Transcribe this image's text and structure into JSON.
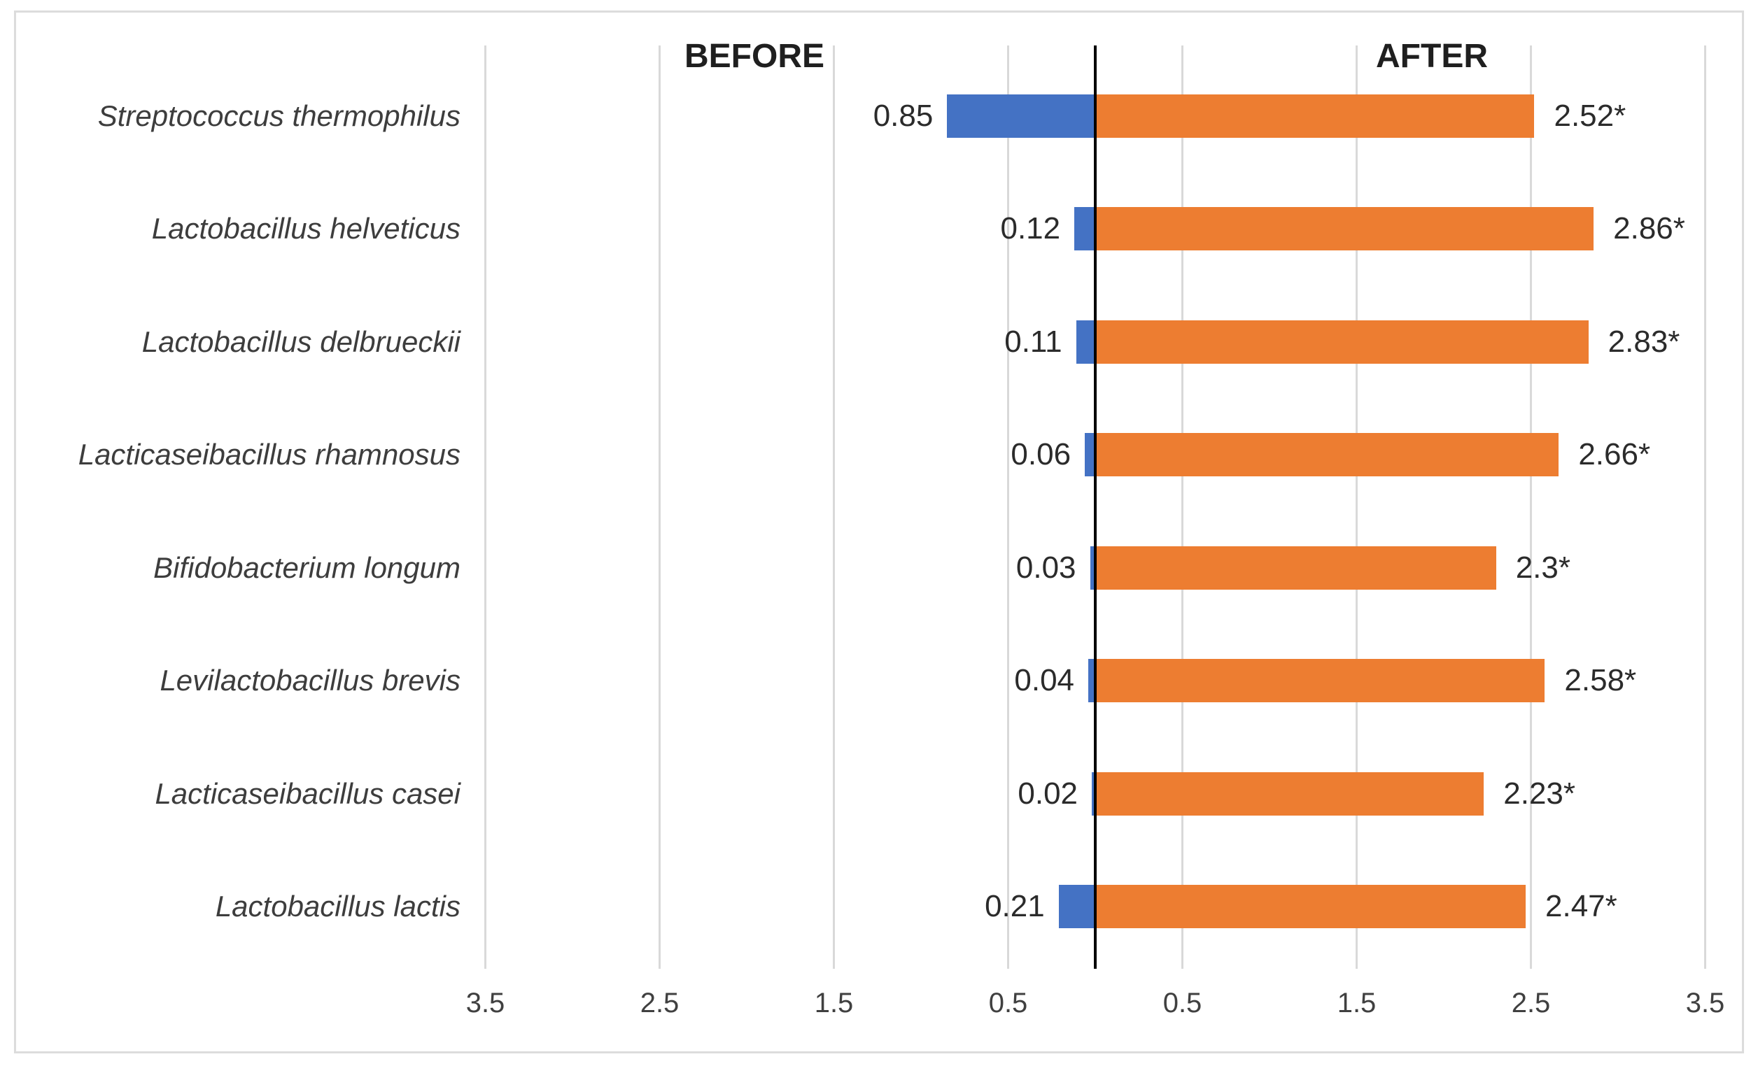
{
  "chart_data": {
    "type": "bar",
    "variant": "diverging-horizontal-tornado",
    "left_title": "BEFORE",
    "right_title": "AFTER",
    "legend": "none",
    "grid": "on",
    "categories": [
      "Streptococcus thermophilus",
      "Lactobacillus helveticus",
      "Lactobacillus delbrueckii",
      "Lacticaseibacillus rhamnosus",
      "Bifidobacterium longum",
      "Levilactobacillus brevis",
      "Lacticaseibacillus casei",
      "Lactobacillus lactis"
    ],
    "series": [
      {
        "name": "BEFORE",
        "side": "left",
        "color": "#4472C4",
        "values": [
          0.85,
          0.12,
          0.11,
          0.06,
          0.03,
          0.04,
          0.02,
          0.21
        ],
        "labels": [
          "0.85",
          "0.12",
          "0.11",
          "0.06",
          "0.03",
          "0.04",
          "0.02",
          "0.21"
        ]
      },
      {
        "name": "AFTER",
        "side": "right",
        "color": "#ED7D31",
        "values": [
          2.52,
          2.86,
          2.83,
          2.66,
          2.3,
          2.58,
          2.23,
          2.47
        ],
        "labels": [
          "2.52*",
          "2.86*",
          "2.83*",
          "2.66*",
          "2.3*",
          "2.58*",
          "2.23*",
          "2.47*"
        ]
      }
    ],
    "x_axis": {
      "tick_values": [
        -3.5,
        -2.5,
        -1.5,
        -0.5,
        0.5,
        1.5,
        2.5,
        3.5
      ],
      "tick_labels": [
        "3.5",
        "2.5",
        "1.5",
        "0.5",
        "0.5",
        "1.5",
        "2.5",
        "3.5"
      ],
      "range": [
        -3.72,
        3.72
      ],
      "gridline_color": "#D9D9D9",
      "center_line_color": "#000000"
    },
    "colors": {
      "before_bar": "#4472C4",
      "after_bar": "#ED7D31",
      "gridline": "#D9D9D9",
      "center_line": "#000000",
      "border": "#DCDCDC",
      "text": "#2B2B2B"
    }
  }
}
